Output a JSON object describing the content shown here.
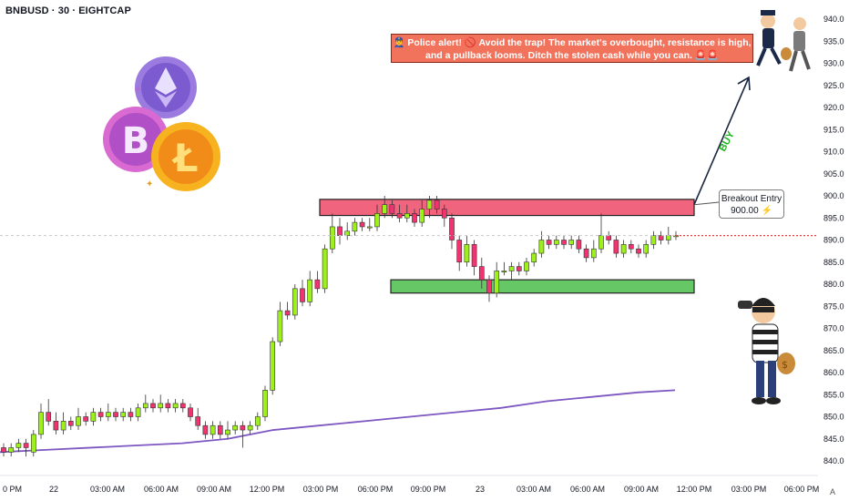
{
  "header": {
    "title": "BNBUSD · 30 · EIGHTCAP"
  },
  "alert": {
    "line1": "👮‍♂️ Police alert! 🚫 Avoid the trap! The market's overbought, resistance is high,",
    "line2": "and a pullback looms. Ditch the stolen cash while you can. 🚨🚨"
  },
  "entry_label": {
    "line1": "Breakout Entry",
    "line2": "900.00 ⚡"
  },
  "buy_label": "BUY",
  "auto_label": "A",
  "colors": {
    "bull": "#9ef01a",
    "bear": "#f1336f",
    "ma": "#7e57c2",
    "resistance": "#f0647e",
    "support": "#66c766",
    "price_line": "#ef3a3a"
  },
  "chart_data": {
    "type": "candlestick",
    "symbol": "BNBUSD",
    "interval": "30",
    "exchange": "EIGHTCAP",
    "ylim": [
      837,
      942
    ],
    "y_ticks": [
      840,
      845,
      850,
      855,
      860,
      865,
      870,
      875,
      880,
      885,
      890,
      895,
      900,
      905,
      910,
      915,
      920,
      925,
      930,
      935,
      940
    ],
    "x_ticks": [
      "0 PM",
      "22",
      "03:00 AM",
      "06:00 AM",
      "09:00 AM",
      "12:00 PM",
      "03:00 PM",
      "06:00 PM",
      "09:00 PM",
      "23",
      "03:00 AM",
      "06:00 AM",
      "09:00 AM",
      "12:00 PM",
      "03:00 PM",
      "06:00 PM"
    ],
    "current_price": 891,
    "resistance_zone": [
      897,
      899
    ],
    "support_zone": [
      878,
      881
    ],
    "breakout_entry": 900,
    "candles": [
      [
        843,
        842,
        844,
        841
      ],
      [
        842,
        843,
        844,
        841
      ],
      [
        843,
        844,
        845,
        842
      ],
      [
        844,
        843,
        845,
        841
      ],
      [
        842,
        846,
        847,
        841
      ],
      [
        846,
        851,
        853,
        845
      ],
      [
        851,
        849,
        854,
        848
      ],
      [
        849,
        847,
        851,
        846
      ],
      [
        847,
        849,
        851,
        846
      ],
      [
        849,
        848,
        850,
        847
      ],
      [
        848,
        850,
        852,
        847
      ],
      [
        850,
        849,
        851,
        848
      ],
      [
        849,
        851,
        852,
        848
      ],
      [
        851,
        850,
        852,
        849
      ],
      [
        850,
        851,
        853,
        849
      ],
      [
        851,
        850,
        852,
        849
      ],
      [
        850,
        851,
        852,
        849
      ],
      [
        851,
        850,
        852,
        849
      ],
      [
        850,
        852,
        853,
        849
      ],
      [
        852,
        853,
        855,
        851
      ],
      [
        853,
        852,
        854,
        851
      ],
      [
        852,
        853,
        855,
        851
      ],
      [
        853,
        852,
        854,
        851
      ],
      [
        852,
        853,
        854,
        851
      ],
      [
        853,
        852,
        854,
        851
      ],
      [
        852,
        850,
        853,
        849
      ],
      [
        850,
        848,
        852,
        847
      ],
      [
        848,
        846,
        849,
        845
      ],
      [
        846,
        848,
        849,
        845
      ],
      [
        848,
        846,
        849,
        845
      ],
      [
        846,
        847,
        849,
        845
      ],
      [
        847,
        848,
        849,
        846
      ],
      [
        848,
        847,
        849,
        843
      ],
      [
        847,
        848,
        849,
        846
      ],
      [
        848,
        850,
        851,
        847
      ],
      [
        850,
        856,
        857,
        849
      ],
      [
        856,
        867,
        868,
        855
      ],
      [
        867,
        874,
        876,
        866
      ],
      [
        874,
        873,
        876,
        872
      ],
      [
        873,
        879,
        880,
        872
      ],
      [
        879,
        876,
        881,
        875
      ],
      [
        876,
        881,
        883,
        875
      ],
      [
        881,
        879,
        883,
        878
      ],
      [
        879,
        888,
        889,
        878
      ],
      [
        888,
        893,
        896,
        887
      ],
      [
        893,
        891,
        895,
        889
      ],
      [
        891,
        892,
        894,
        890
      ],
      [
        892,
        894,
        895,
        891
      ],
      [
        894,
        893,
        895,
        892
      ],
      [
        893,
        893,
        895,
        892
      ],
      [
        893,
        896,
        898,
        892
      ],
      [
        896,
        898,
        900,
        895
      ],
      [
        898,
        896,
        899,
        895
      ],
      [
        896,
        895,
        898,
        894
      ],
      [
        895,
        896,
        898,
        894
      ],
      [
        896,
        894,
        897,
        893
      ],
      [
        894,
        897,
        899,
        893
      ],
      [
        897,
        899,
        900,
        895
      ],
      [
        899,
        897,
        900,
        896
      ],
      [
        897,
        895,
        898,
        893
      ],
      [
        895,
        890,
        896,
        888
      ],
      [
        890,
        885,
        891,
        883
      ],
      [
        885,
        889,
        891,
        884
      ],
      [
        889,
        884,
        890,
        882
      ],
      [
        884,
        881,
        886,
        879
      ],
      [
        881,
        878,
        882,
        876
      ],
      [
        878,
        883,
        885,
        877
      ],
      [
        883,
        883,
        885,
        882
      ],
      [
        883,
        884,
        885,
        881
      ],
      [
        884,
        883,
        885,
        882
      ],
      [
        883,
        885,
        886,
        882
      ],
      [
        885,
        887,
        888,
        884
      ],
      [
        887,
        890,
        892,
        886
      ],
      [
        890,
        889,
        891,
        888
      ],
      [
        889,
        890,
        891,
        888
      ],
      [
        890,
        889,
        891,
        888
      ],
      [
        889,
        890,
        891,
        888
      ],
      [
        890,
        888,
        891,
        887
      ],
      [
        888,
        886,
        889,
        885
      ],
      [
        886,
        888,
        890,
        885
      ],
      [
        888,
        891,
        896,
        887
      ],
      [
        891,
        890,
        892,
        889
      ],
      [
        890,
        887,
        891,
        886
      ],
      [
        887,
        889,
        890,
        886
      ],
      [
        889,
        888,
        890,
        887
      ],
      [
        888,
        887,
        889,
        886
      ],
      [
        887,
        889,
        890,
        886
      ],
      [
        889,
        891,
        892,
        888
      ],
      [
        891,
        890,
        892,
        889
      ],
      [
        890,
        891,
        893,
        889
      ],
      [
        891,
        891,
        892,
        890
      ]
    ],
    "ma_line": [
      [
        0,
        842
      ],
      [
        50,
        842.5
      ],
      [
        100,
        843
      ],
      [
        150,
        843.5
      ],
      [
        200,
        844
      ],
      [
        250,
        845
      ],
      [
        300,
        847
      ],
      [
        350,
        848
      ],
      [
        400,
        849
      ],
      [
        450,
        850
      ],
      [
        500,
        851
      ],
      [
        550,
        852
      ],
      [
        600,
        853.5
      ],
      [
        650,
        854.5
      ],
      [
        700,
        855.5
      ],
      [
        741,
        856
      ]
    ]
  }
}
